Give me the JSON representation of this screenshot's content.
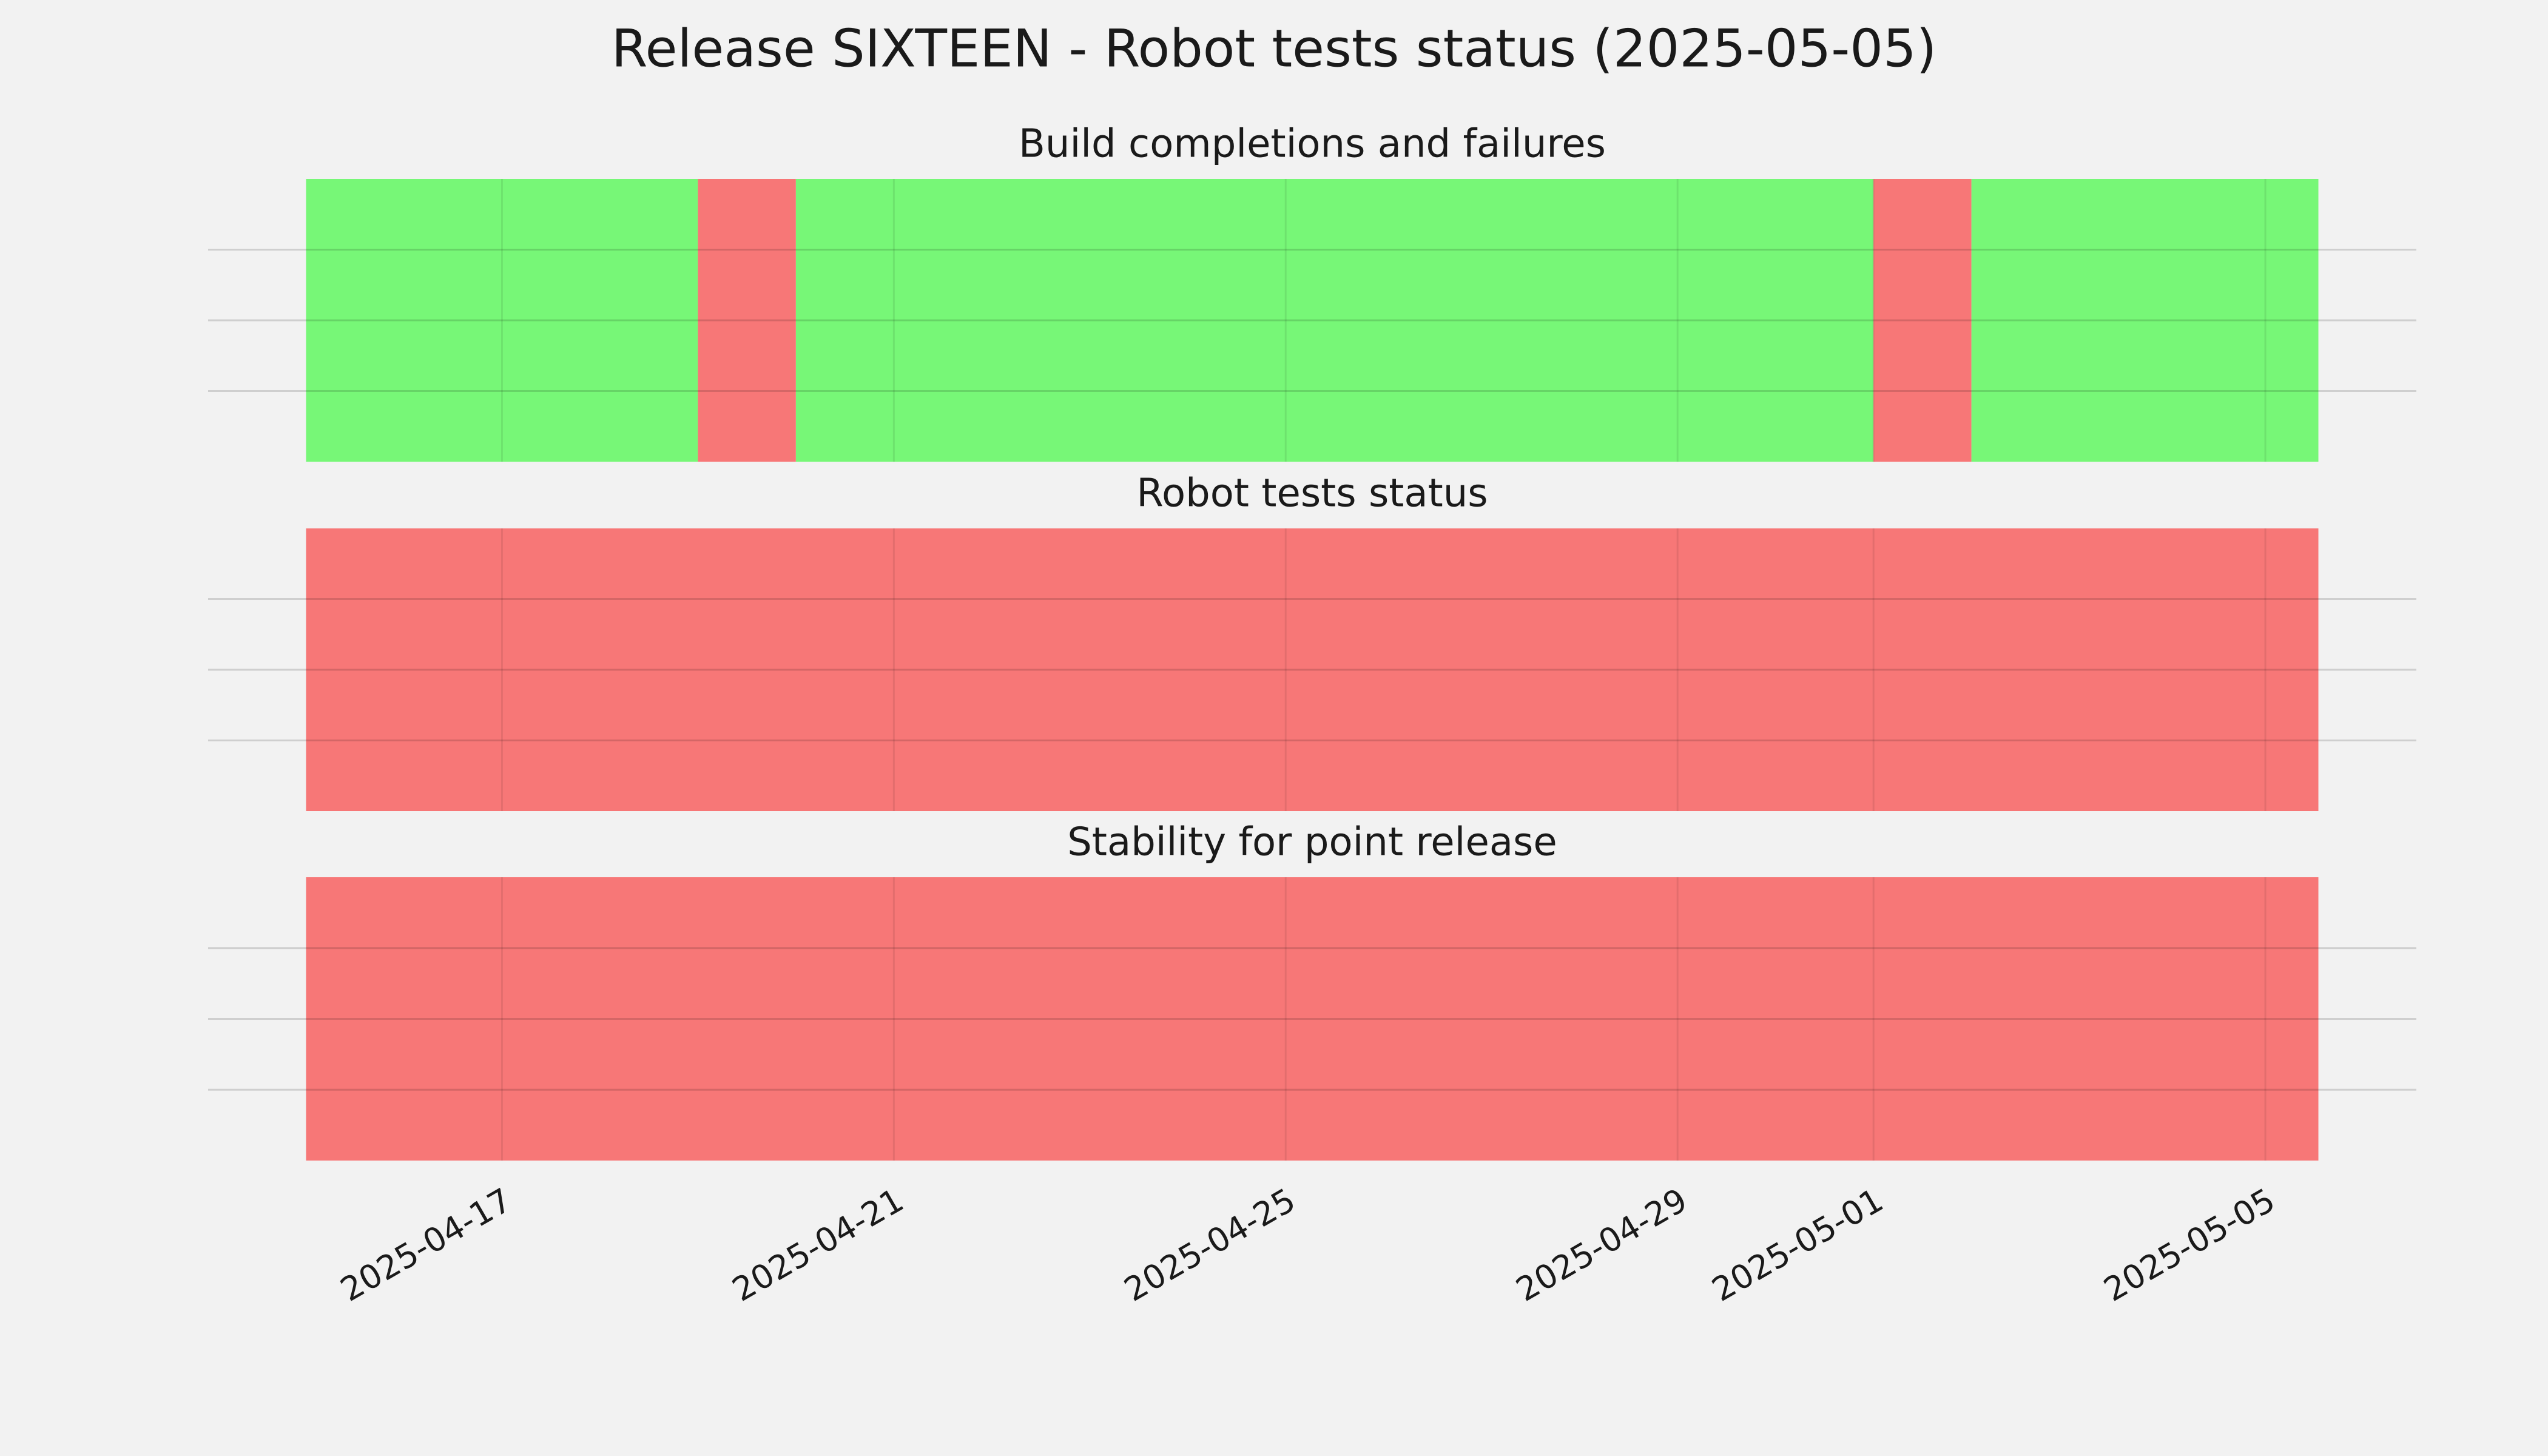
{
  "title": "Release SIXTEEN - Robot tests status (2025-05-05)",
  "chart_data": [
    {
      "type": "timeline",
      "title": "Build completions and failures",
      "spans": [
        {
          "start": "2025-04-15",
          "end": "2025-04-19",
          "color": "#77f777"
        },
        {
          "start": "2025-04-19",
          "end": "2025-04-20",
          "color": "#f77777"
        },
        {
          "start": "2025-04-20",
          "end": "2025-05-01",
          "color": "#77f777"
        },
        {
          "start": "2025-05-01",
          "end": "2025-05-02",
          "color": "#f77777"
        },
        {
          "start": "2025-05-02",
          "end": "2025-05-05T13:00",
          "color": "#77f777"
        }
      ],
      "xlim": [
        "2025-04-14",
        "2025-05-06T13:00"
      ],
      "xticks": [
        "2025-04-17",
        "2025-04-21",
        "2025-04-25",
        "2025-04-29",
        "2025-05-01",
        "2025-05-05"
      ],
      "ylim": [
        0,
        1
      ],
      "yticks": [
        0.25,
        0.5,
        0.75
      ],
      "grid": true
    },
    {
      "type": "timeline",
      "title": "Robot tests status",
      "spans": [
        {
          "start": "2025-04-15",
          "end": "2025-05-05T13:00",
          "color": "#f77777"
        }
      ],
      "xlim": [
        "2025-04-14",
        "2025-05-06T13:00"
      ],
      "xticks": [
        "2025-04-17",
        "2025-04-21",
        "2025-04-25",
        "2025-04-29",
        "2025-05-01",
        "2025-05-05"
      ],
      "ylim": [
        0,
        1
      ],
      "yticks": [
        0.25,
        0.5,
        0.75
      ],
      "grid": true
    },
    {
      "type": "timeline",
      "title": "Stability for point release",
      "spans": [
        {
          "start": "2025-04-15",
          "end": "2025-05-05T13:00",
          "color": "#f77777"
        }
      ],
      "xlim": [
        "2025-04-14",
        "2025-05-06T13:00"
      ],
      "xticks": [
        "2025-04-17",
        "2025-04-21",
        "2025-04-25",
        "2025-04-29",
        "2025-05-01",
        "2025-05-05"
      ],
      "ylim": [
        0,
        1
      ],
      "yticks": [
        0.25,
        0.5,
        0.75
      ],
      "grid": true
    }
  ]
}
